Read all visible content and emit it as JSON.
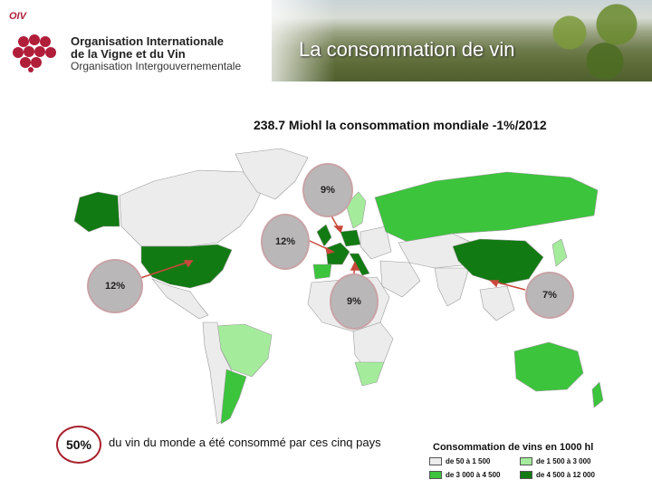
{
  "header": {
    "logo_text": "OIV",
    "org_name_line1": "Organisation Internationale",
    "org_name_line2": "de la Vigne et du Vin",
    "org_subtitle": "Organisation Intergouvernementale",
    "slide_title": "La consommation de vin"
  },
  "map": {
    "title": "238.7 Miohl la consommation mondiale -1%/2012",
    "bubbles": [
      {
        "id": "north",
        "label": "9%"
      },
      {
        "id": "west",
        "label": "12%"
      },
      {
        "id": "usa",
        "label": "12%"
      },
      {
        "id": "south",
        "label": "9%"
      },
      {
        "id": "china",
        "label": "7%"
      }
    ],
    "colors": {
      "class1": "#e8e8e8",
      "class2": "#90ee90",
      "class3": "#3cc43c",
      "class4": "#1a6e1a",
      "ocean": "#ffffff",
      "arrow": "#c9483c"
    }
  },
  "footer": {
    "percent": "50%",
    "text": "du vin du monde a été consommé par ces cinq pays"
  },
  "legend": {
    "title": "Consommation de vins en 1000 hl",
    "items": [
      {
        "label": "de 50 à 1 500",
        "color": "#ececec"
      },
      {
        "label": "de 1 500 à 3 000",
        "color": "#a4ec9c"
      },
      {
        "label": "de 3 000 à 4 500",
        "color": "#3cc43c"
      },
      {
        "label": "de 4 500 à 12 000",
        "color": "#127a12"
      }
    ]
  }
}
